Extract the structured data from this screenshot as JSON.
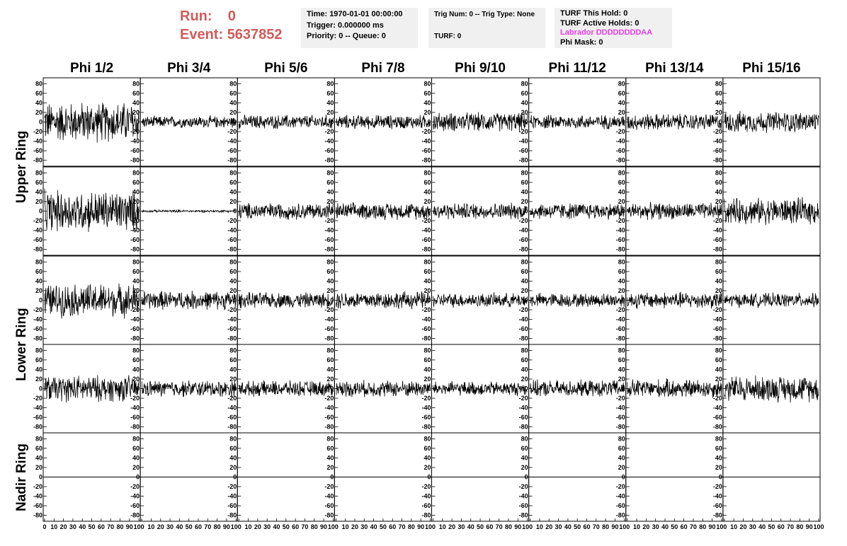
{
  "header": {
    "run_label": "Run:",
    "run_value": "0",
    "event_label": "Event:",
    "event_value": "5637852"
  },
  "info_box_1": {
    "time": "Time: 1970-01-01 00:00:00",
    "trigger": "Trigger: 0.000000 ms",
    "priority": "Priority: 0 -- Queue: 0"
  },
  "info_box_2": {
    "trig": "Trig Num: 0 -- Trig Type: None",
    "turf": "TURF: 0"
  },
  "info_box_3": {
    "hold": "TURF This Hold: 0",
    "active": "TURF Active Holds: 0",
    "labrador": "Labrador DDDDDDDDAA",
    "phimask": "Phi Mask: 0"
  },
  "colors": {
    "header": "#d25a5a",
    "labrador": "#e63ce6",
    "box_bg": "#f0f0f0"
  },
  "chart_data": {
    "type": "line",
    "columns": [
      "Phi 1/2",
      "Phi 3/4",
      "Phi 5/6",
      "Phi 7/8",
      "Phi 9/10",
      "Phi 11/12",
      "Phi 13/14",
      "Phi 15/16"
    ],
    "row_labels": [
      {
        "label": "Upper Ring",
        "rows": [
          0,
          1
        ]
      },
      {
        "label": "Lower Ring",
        "rows": [
          2,
          3
        ]
      },
      {
        "label": "Nadir Ring",
        "rows": [
          4
        ]
      }
    ],
    "y_ticks": [
      "80",
      "60",
      "40",
      "20",
      "0",
      "-20",
      "-40",
      "-60",
      "-80"
    ],
    "y_tick_values": [
      80,
      60,
      40,
      20,
      0,
      -20,
      -40,
      -60,
      -80
    ],
    "ylim": [
      -85,
      85
    ],
    "x_ticks": [
      "0",
      "10",
      "20",
      "30",
      "40",
      "50",
      "60",
      "70",
      "80",
      "90",
      "100"
    ],
    "x_tick_values": [
      0,
      10,
      20,
      30,
      40,
      50,
      60,
      70,
      80,
      90,
      100
    ],
    "xlim": [
      0,
      100
    ],
    "amplitude": [
      [
        34,
        10,
        12,
        12,
        16,
        12,
        14,
        18
      ],
      [
        35,
        2,
        14,
        14,
        14,
        14,
        14,
        22
      ],
      [
        28,
        16,
        13,
        15,
        12,
        12,
        14,
        12
      ],
      [
        22,
        14,
        13,
        14,
        12,
        14,
        16,
        22
      ],
      [
        0,
        0,
        0,
        0,
        0,
        0,
        0,
        0
      ]
    ]
  }
}
